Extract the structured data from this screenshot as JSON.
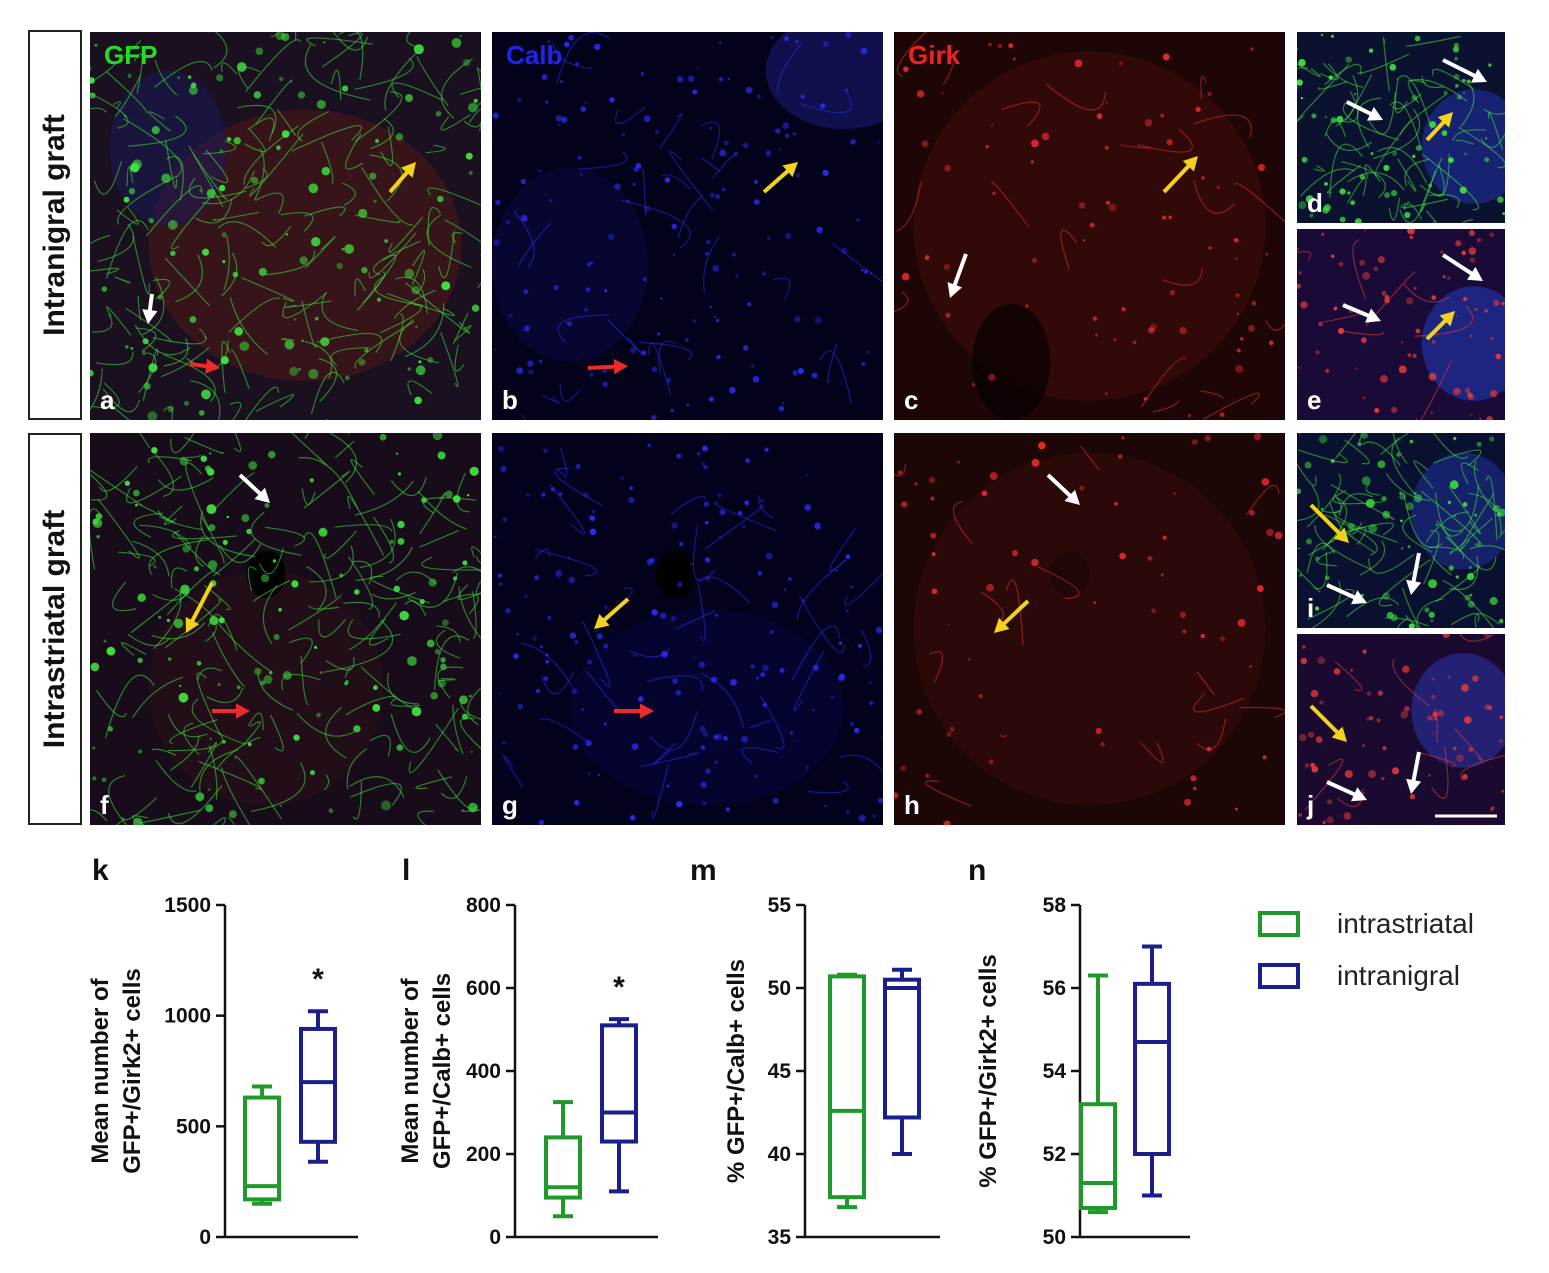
{
  "rows": [
    {
      "label": "Intranigral graft"
    },
    {
      "label": "Intrastriatal graft"
    }
  ],
  "panels": {
    "a": {
      "letter": "a",
      "channel": "GFP",
      "channel_color": "#22dd22"
    },
    "b": {
      "letter": "b",
      "channel": "Calb",
      "channel_color": "#2222ee"
    },
    "c": {
      "letter": "c",
      "channel": "Girk",
      "channel_color": "#ee2222"
    },
    "d": {
      "letter": "d"
    },
    "e": {
      "letter": "e"
    },
    "f": {
      "letter": "f"
    },
    "g": {
      "letter": "g"
    },
    "h": {
      "letter": "h"
    },
    "i": {
      "letter": "i"
    },
    "j": {
      "letter": "j"
    }
  },
  "legend": [
    {
      "label": "intrastriatal",
      "color": "#1f9a2a"
    },
    {
      "label": "intranigral",
      "color": "#1a1f8c"
    }
  ],
  "chart_data": [
    {
      "letter": "k",
      "type": "box",
      "ylabel_lines": [
        "Mean number of",
        "GFP+/Girk2+ cells"
      ],
      "ylim": [
        0,
        1500
      ],
      "yticks": [
        0,
        500,
        1000,
        1500
      ],
      "significance": "*",
      "series": [
        {
          "name": "intrastriatal",
          "min": 150,
          "q1": 170,
          "median": 230,
          "q3": 630,
          "max": 680
        },
        {
          "name": "intranigral",
          "min": 340,
          "q1": 430,
          "median": 700,
          "q3": 940,
          "max": 1020
        }
      ]
    },
    {
      "letter": "l",
      "type": "box",
      "ylabel_lines": [
        "Mean number of",
        "GFP+/Calb+ cells"
      ],
      "ylim": [
        0,
        800
      ],
      "yticks": [
        0,
        200,
        400,
        600,
        800
      ],
      "significance": "*",
      "series": [
        {
          "name": "intrastriatal",
          "min": 50,
          "q1": 95,
          "median": 120,
          "q3": 240,
          "max": 325
        },
        {
          "name": "intranigral",
          "min": 110,
          "q1": 230,
          "median": 300,
          "q3": 510,
          "max": 525
        }
      ]
    },
    {
      "letter": "m",
      "type": "box",
      "ylabel_lines": [
        "% GFP+/Calb+ cells"
      ],
      "ylim": [
        35,
        55
      ],
      "yticks": [
        35,
        40,
        45,
        50,
        55
      ],
      "significance": "",
      "series": [
        {
          "name": "intrastriatal",
          "min": 36.8,
          "q1": 37.4,
          "median": 42.6,
          "q3": 50.7,
          "max": 50.8
        },
        {
          "name": "intranigral",
          "min": 40.0,
          "q1": 42.2,
          "median": 50.0,
          "q3": 50.5,
          "max": 51.1
        }
      ]
    },
    {
      "letter": "n",
      "type": "box",
      "ylabel_lines": [
        "% GFP+/Girk2+ cells"
      ],
      "ylim": [
        50,
        58
      ],
      "yticks": [
        50,
        52,
        54,
        56,
        58
      ],
      "significance": "",
      "series": [
        {
          "name": "intrastriatal",
          "min": 50.6,
          "q1": 50.7,
          "median": 51.3,
          "q3": 53.2,
          "max": 56.3
        },
        {
          "name": "intranigral",
          "min": 51.0,
          "q1": 52.0,
          "median": 54.7,
          "q3": 56.1,
          "max": 57.0
        }
      ]
    }
  ]
}
